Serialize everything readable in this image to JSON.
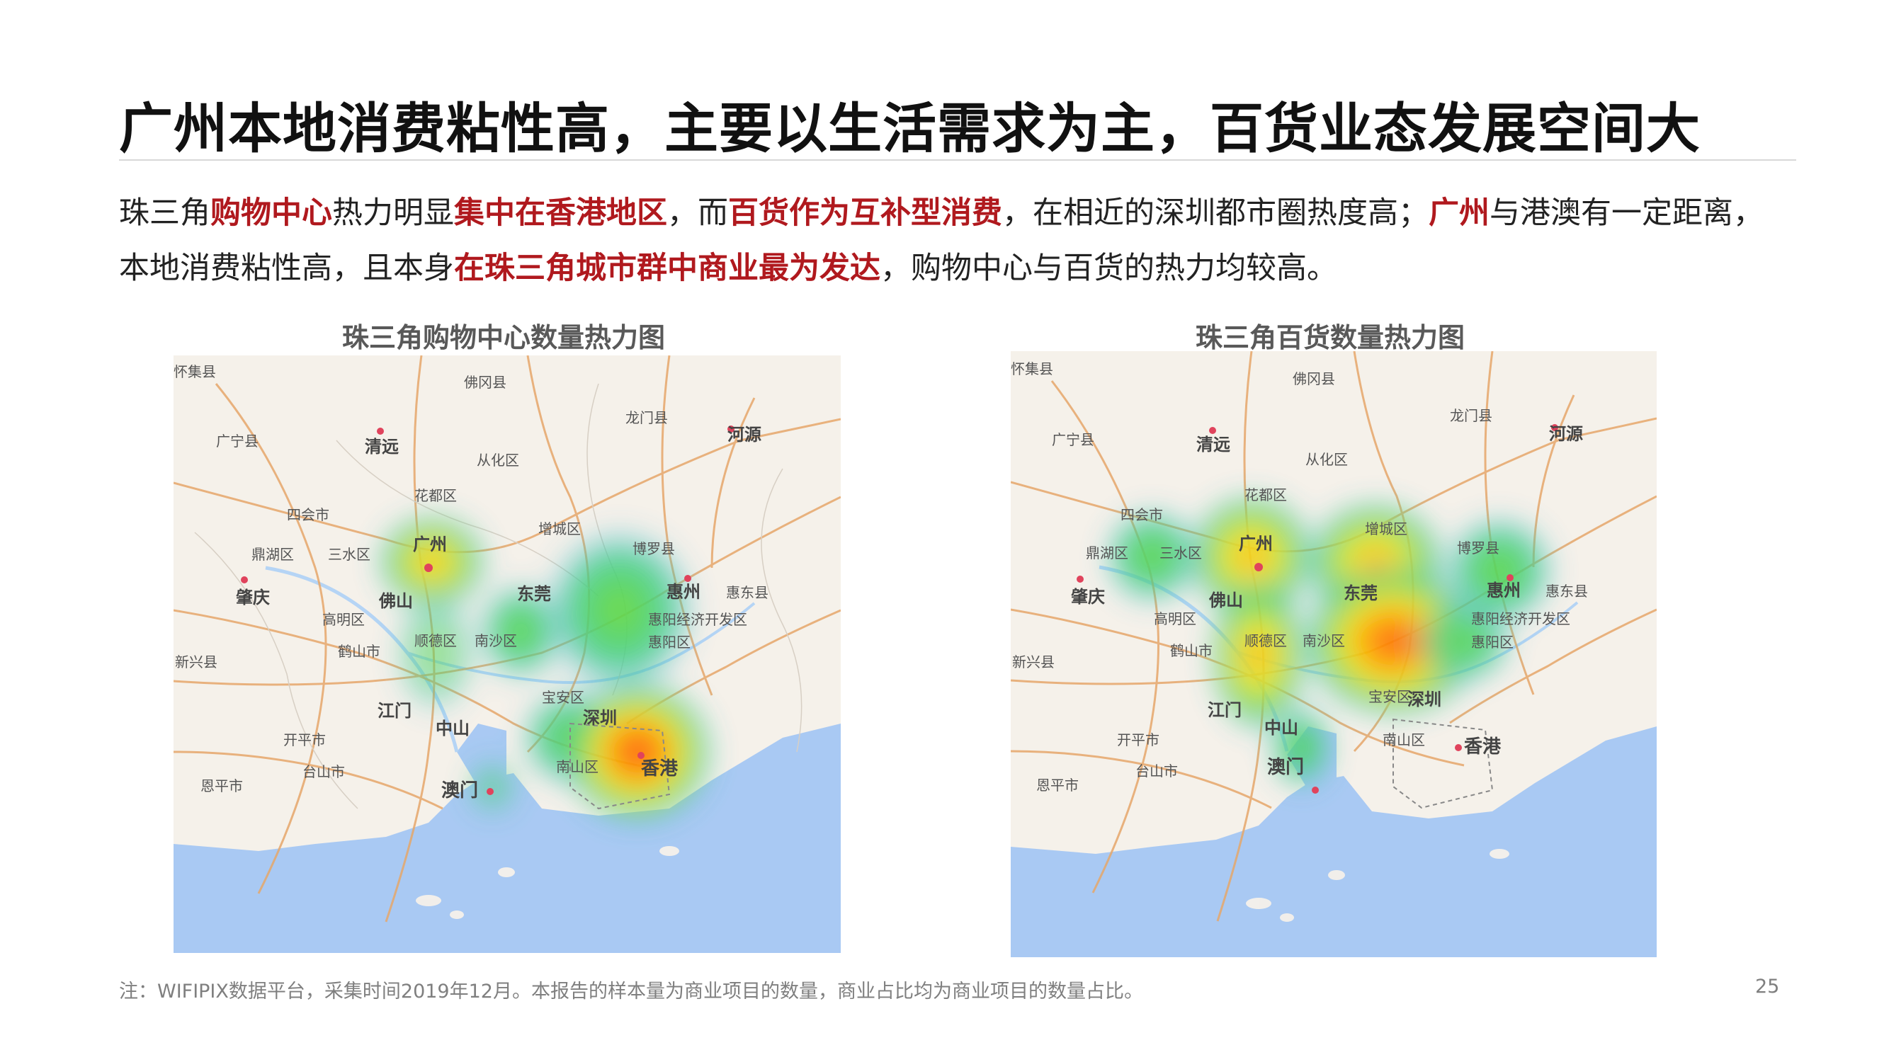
{
  "title": "广州本地消费粘性高，主要以生活需求为主，百货业态发展空间大",
  "summary": {
    "line1": [
      {
        "text": "珠三角",
        "hl": false
      },
      {
        "text": "购物中心",
        "hl": true
      },
      {
        "text": "热力明显",
        "hl": false
      },
      {
        "text": "集中在香港地区",
        "hl": true
      },
      {
        "text": "，而",
        "hl": false
      },
      {
        "text": "百货作为互补型消费",
        "hl": true
      },
      {
        "text": "，在相近的深圳都市圈热度高；",
        "hl": false
      },
      {
        "text": "广州",
        "hl": true
      },
      {
        "text": "与港澳有一定距离，",
        "hl": false
      }
    ],
    "line2": [
      {
        "text": "本地消费粘性高，且本身",
        "hl": false
      },
      {
        "text": "在珠三角城市群中商业最为发达",
        "hl": true
      },
      {
        "text": "，购物中心与百货的热力均较高。",
        "hl": false
      }
    ]
  },
  "maps": [
    {
      "title": "珠三角购物中心数量热力图",
      "labels": {
        "huaiji": "怀集县",
        "fogang": "佛冈县",
        "longmen": "龙门县",
        "heyuan": "河源",
        "guangning": "广宁县",
        "qingyuan": "清远",
        "conghua": "从化区",
        "huadu": "花都区",
        "sihui": "四会市",
        "guangzhou": "广州",
        "zengcheng": "增城区",
        "boluo": "博罗县",
        "dinghu": "鼎湖区",
        "sanshui": "三水区",
        "zhaoqing": "肇庆",
        "foshan": "佛山",
        "dongguan": "东莞",
        "huizhou": "惠州",
        "huidong": "惠东县",
        "gaoming": "高明区",
        "huiyang": "惠阳经济开发区",
        "heshan": "鹤山市",
        "shunde": "顺德区",
        "nansha": "南沙区",
        "huiyangqu": "惠阳区",
        "xinxing": "新兴县",
        "jiangmen": "江门",
        "zhongshan": "中山",
        "baoan": "宝安区",
        "shenzhen": "深圳",
        "kaiping": "开平市",
        "taishan": "台山市",
        "enping": "恩平市",
        "nanshan": "南山区",
        "xianggang": "香港",
        "aomen": "澳门"
      }
    },
    {
      "title": "珠三角百货数量热力图",
      "labels": {
        "huaiji": "怀集县",
        "fogang": "佛冈县",
        "longmen": "龙门县",
        "heyuan": "河源",
        "guangning": "广宁县",
        "qingyuan": "清远",
        "conghua": "从化区",
        "huadu": "花都区",
        "sihui": "四会市",
        "guangzhou": "广州",
        "zengcheng": "增城区",
        "boluo": "博罗县",
        "dinghu": "鼎湖区",
        "sanshui": "三水区",
        "zhaoqing": "肇庆",
        "foshan": "佛山",
        "dongguan": "东莞",
        "huizhou": "惠州",
        "huidong": "惠东县",
        "gaoming": "高明区",
        "huiyang": "惠阳经济开发区",
        "heshan": "鹤山市",
        "shunde": "顺德区",
        "nansha": "南沙区",
        "huiyangqu": "惠阳区",
        "xinxing": "新兴县",
        "jiangmen": "江门",
        "zhongshan": "中山",
        "baoan": "宝安区",
        "shenzhen": "深圳",
        "kaiping": "开平市",
        "taishan": "台山市",
        "enping": "恩平市",
        "nanshan": "南山区",
        "xianggang": "香港",
        "aomen": "澳门"
      }
    }
  ],
  "colors": {
    "highlight": "#b0191e",
    "sea": "#a9c9f3",
    "land": "#f5f1ea",
    "road": "#e6a76a"
  },
  "footnote": "注：WIFIPIX数据平台，采集时间2019年12月。本报告的样本量为商业项目的数量，商业占比均为商业项目的数量占比。",
  "page_number": "25"
}
